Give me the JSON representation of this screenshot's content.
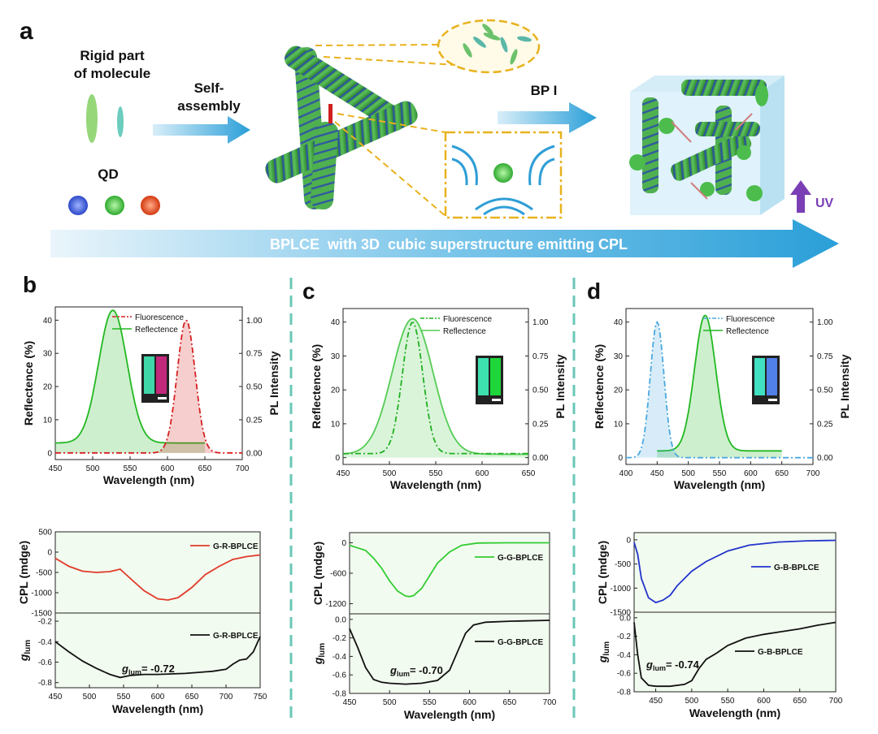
{
  "panel_a": {
    "letter": "a",
    "rigid_label_1": "Rigid part",
    "rigid_label_2": "of molecule",
    "self_assembly_1": "Self-",
    "self_assembly_2": "assembly",
    "qd_label": "QD",
    "bp_label": "BP I",
    "uv_label": "UV",
    "banner_text": "BPLCE  with 3D  cubic superstructure emitting CPL",
    "colors": {
      "qd_blue": "#3a5bd9",
      "qd_green": "#3ec23e",
      "qd_red": "#e0451f",
      "arrow": "#2a9fd8",
      "cylinder": "#3c9c3c",
      "stripe": "#2b4fa8",
      "uv": "#7b3fb5"
    }
  },
  "chart_data": [
    {
      "id": "b_top",
      "panel_letter": "b",
      "type": "line",
      "xlabel": "Wavelength (nm)",
      "ylabel": "Reflectence (%)",
      "y2label": "PL Intensity",
      "xlim": [
        450,
        700
      ],
      "ylim": [
        -2,
        44
      ],
      "y2lim": [
        -0.05,
        1.1
      ],
      "xticks": [
        450,
        500,
        550,
        600,
        650,
        700
      ],
      "yticks": [
        0,
        10,
        20,
        30,
        40
      ],
      "y2ticks": [
        0,
        0.25,
        0.5,
        0.75,
        1.0
      ],
      "y2ticklabels": [
        "0.00",
        "0.25",
        "0.50",
        "0.75",
        "1.00"
      ],
      "legend": [
        "Fluorescence",
        "Reflectence"
      ],
      "series": [
        {
          "name": "Reflectence",
          "axis": "left",
          "color": "#22b822",
          "style": "solid",
          "fill": true,
          "peak": 527,
          "width": 19,
          "height": 40,
          "base": 3,
          "range": [
            450,
            650
          ]
        },
        {
          "name": "Fluorescence",
          "axis": "right",
          "color": "#d62020",
          "style": "dashdot",
          "fill": true,
          "peak": 625,
          "width": 12,
          "height": 1.0,
          "base": 0,
          "range": [
            450,
            700
          ]
        }
      ],
      "inset_colors": [
        "#3fd6a8",
        "#c2297a"
      ]
    },
    {
      "id": "c_top",
      "panel_letter": "c",
      "type": "line",
      "xlabel": "Wavelength (nm)",
      "ylabel": "Reflectence (%)",
      "y2label": "PL Intensity",
      "xlim": [
        450,
        650
      ],
      "ylim": [
        -2,
        44
      ],
      "y2lim": [
        -0.05,
        1.1
      ],
      "xticks": [
        450,
        500,
        550,
        600,
        650
      ],
      "yticks": [
        0,
        10,
        20,
        30,
        40
      ],
      "y2ticks": [
        0,
        0.25,
        0.5,
        0.75,
        1.0
      ],
      "y2ticklabels": [
        "0.00",
        "0.25",
        "0.50",
        "0.75",
        "1.00"
      ],
      "legend": [
        "Fluorescence",
        "Reflectence"
      ],
      "series": [
        {
          "name": "Reflectence",
          "axis": "left",
          "color": "#55cc55",
          "style": "solid",
          "fill": true,
          "peak": 525,
          "width": 22,
          "height": 40,
          "base": 1,
          "range": [
            450,
            650
          ]
        },
        {
          "name": "Fluorescence",
          "axis": "right",
          "color": "#20b020",
          "style": "dashdot",
          "fill": false,
          "peak": 525,
          "width": 11,
          "height": 0.97,
          "base": 0.03,
          "range": [
            450,
            650
          ]
        }
      ],
      "inset_colors": [
        "#3fe0b0",
        "#1fd63a"
      ]
    },
    {
      "id": "d_top",
      "panel_letter": "d",
      "type": "line",
      "xlabel": "Wavelength (nm)",
      "ylabel": "Reflectence (%)",
      "y2label": "PL Intensity",
      "xlim": [
        400,
        700
      ],
      "ylim": [
        -2,
        44
      ],
      "y2lim": [
        -0.05,
        1.1
      ],
      "xticks": [
        400,
        450,
        500,
        550,
        600,
        650,
        700
      ],
      "yticks": [
        0,
        10,
        20,
        30,
        40
      ],
      "y2ticks": [
        0,
        0.25,
        0.5,
        0.75,
        1.0
      ],
      "y2ticklabels": [
        "0.00",
        "0.25",
        "0.50",
        "0.75",
        "1.00"
      ],
      "legend": [
        "Fluorescence",
        "Reflectence"
      ],
      "series": [
        {
          "name": "Reflectence",
          "axis": "left",
          "color": "#22b822",
          "style": "solid",
          "fill": true,
          "peak": 527,
          "width": 17,
          "height": 40,
          "base": 2,
          "range": [
            450,
            650
          ]
        },
        {
          "name": "Fluorescence",
          "axis": "right",
          "color": "#4aa8e0",
          "style": "dashdot",
          "fill": true,
          "peak": 450,
          "width": 11,
          "height": 1.0,
          "base": 0,
          "range": [
            400,
            700
          ]
        }
      ],
      "inset_colors": [
        "#40e0c0",
        "#5080e8"
      ]
    },
    {
      "id": "b_cpl",
      "type": "line",
      "ylabel": "CPL (mdge)",
      "xlim": [
        450,
        750
      ],
      "ylim": [
        -1500,
        500
      ],
      "yticks": [
        -1500,
        -1000,
        -500,
        0,
        500
      ],
      "legend": [
        "G-R-BPLCE"
      ],
      "series": [
        {
          "name": "G-R-BPLCE",
          "color": "#e03a2a",
          "x": [
            450,
            470,
            490,
            510,
            530,
            545,
            560,
            580,
            600,
            615,
            630,
            650,
            670,
            690,
            710,
            730,
            750
          ],
          "y": [
            -150,
            -350,
            -470,
            -500,
            -480,
            -420,
            -650,
            -950,
            -1150,
            -1180,
            -1120,
            -870,
            -550,
            -350,
            -180,
            -110,
            -70
          ]
        }
      ]
    },
    {
      "id": "b_glum",
      "type": "line",
      "ylabel": "glum",
      "xlabel": "Wavelength (nm)",
      "xlim": [
        450,
        750
      ],
      "ylim": [
        -0.85,
        -0.12
      ],
      "xticks": [
        450,
        500,
        550,
        600,
        650,
        700,
        750
      ],
      "yticks": [
        -0.8,
        -0.6,
        -0.4,
        -0.2
      ],
      "legend": [
        "G-R-BPLCE"
      ],
      "annotation": "= -0.72",
      "series": [
        {
          "name": "G-R-BPLCE",
          "color": "#111111",
          "x": [
            450,
            470,
            490,
            510,
            530,
            545,
            560,
            580,
            600,
            620,
            640,
            660,
            680,
            700,
            710,
            720,
            730,
            740,
            750
          ],
          "y": [
            -0.4,
            -0.5,
            -0.59,
            -0.66,
            -0.72,
            -0.75,
            -0.73,
            -0.72,
            -0.72,
            -0.715,
            -0.71,
            -0.7,
            -0.69,
            -0.67,
            -0.62,
            -0.58,
            -0.57,
            -0.5,
            -0.35
          ]
        }
      ]
    },
    {
      "id": "c_cpl",
      "type": "line",
      "ylabel": "CPL (mdge)",
      "xlim": [
        450,
        700
      ],
      "ylim": [
        -1400,
        200
      ],
      "yticks": [
        -1200,
        -600,
        0
      ],
      "legend": [
        "G-G-BPLCE"
      ],
      "series": [
        {
          "name": "G-G-BPLCE",
          "color": "#33cc33",
          "x": [
            450,
            470,
            480,
            490,
            500,
            510,
            520,
            525,
            530,
            540,
            550,
            560,
            575,
            590,
            610,
            650,
            700
          ],
          "y": [
            -50,
            -150,
            -300,
            -500,
            -750,
            -950,
            -1050,
            -1060,
            -1040,
            -900,
            -650,
            -400,
            -180,
            -50,
            -5,
            0,
            0
          ]
        }
      ]
    },
    {
      "id": "c_glum",
      "type": "line",
      "ylabel": "glum",
      "xlabel": "Wavelength (nm)",
      "xlim": [
        450,
        700
      ],
      "ylim": [
        -0.8,
        0.06
      ],
      "xticks": [
        450,
        500,
        550,
        600,
        650,
        700
      ],
      "yticks": [
        -0.8,
        -0.6,
        -0.4,
        -0.2,
        0.0
      ],
      "yticklabels": [
        "-0.8",
        "-0.6",
        "-0.4",
        "-0.2",
        "0.0"
      ],
      "legend": [
        "G-G-BPLCE"
      ],
      "annotation": "= -0.70",
      "series": [
        {
          "name": "G-G-BPLCE",
          "color": "#111111",
          "x": [
            450,
            460,
            470,
            480,
            490,
            500,
            520,
            540,
            560,
            575,
            585,
            595,
            605,
            620,
            650,
            700
          ],
          "y": [
            -0.1,
            -0.3,
            -0.52,
            -0.65,
            -0.68,
            -0.69,
            -0.7,
            -0.69,
            -0.66,
            -0.55,
            -0.35,
            -0.15,
            -0.06,
            -0.03,
            -0.02,
            -0.01
          ]
        }
      ]
    },
    {
      "id": "d_cpl",
      "type": "line",
      "ylabel": "CPL (mdge)",
      "xlim": [
        420,
        700
      ],
      "ylim": [
        -1500,
        150
      ],
      "yticks": [
        -1500,
        -1000,
        -500,
        0
      ],
      "legend": [
        "G-B-BPLCE"
      ],
      "series": [
        {
          "name": "G-B-BPLCE",
          "color": "#2233cc",
          "x": [
            420,
            425,
            430,
            440,
            450,
            460,
            470,
            480,
            500,
            520,
            550,
            580,
            620,
            660,
            700
          ],
          "y": [
            -50,
            -300,
            -800,
            -1200,
            -1300,
            -1250,
            -1150,
            -950,
            -650,
            -450,
            -230,
            -110,
            -45,
            -20,
            -10
          ]
        }
      ]
    },
    {
      "id": "d_glum",
      "type": "line",
      "ylabel": "glum",
      "xlabel": "Wavelength (nm)",
      "xlim": [
        420,
        700
      ],
      "ylim": [
        -0.8,
        0.06
      ],
      "xticks": [
        450,
        500,
        550,
        600,
        650,
        700
      ],
      "yticks": [
        -0.8,
        -0.6,
        -0.4,
        -0.2,
        0.0
      ],
      "yticklabels": [
        "-0.8",
        "-0.6",
        "-0.4",
        "-0.2",
        "0.0"
      ],
      "legend": [
        "G-B-BPLCE"
      ],
      "annotation": "= -0.74",
      "series": [
        {
          "name": "G-B-BPLCE",
          "color": "#111111",
          "x": [
            420,
            425,
            430,
            440,
            450,
            470,
            490,
            500,
            510,
            520,
            535,
            550,
            575,
            600,
            625,
            650,
            675,
            700
          ],
          "y": [
            -0.05,
            -0.4,
            -0.65,
            -0.73,
            -0.74,
            -0.74,
            -0.72,
            -0.68,
            -0.55,
            -0.45,
            -0.38,
            -0.3,
            -0.22,
            -0.18,
            -0.15,
            -0.12,
            -0.08,
            -0.05
          ]
        }
      ]
    }
  ]
}
